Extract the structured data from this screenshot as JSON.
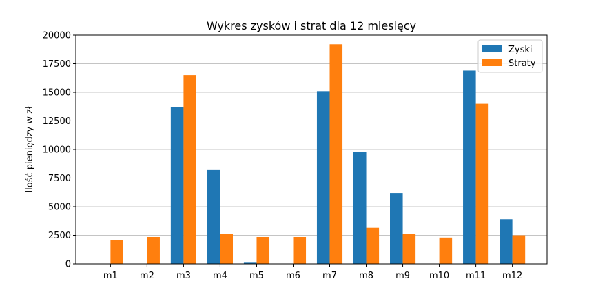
{
  "chart_data": {
    "type": "bar",
    "title": "Wykres zysków i strat dla 12 miesięcy",
    "xlabel": "",
    "ylabel": "Ilość pieniędzy w zł",
    "categories": [
      "m1",
      "m2",
      "m3",
      "m4",
      "m5",
      "m6",
      "m7",
      "m8",
      "m9",
      "m10",
      "m11",
      "m12"
    ],
    "series": [
      {
        "name": "Zyski",
        "color": "#1f77b4",
        "values": [
          0,
          0,
          13700,
          8200,
          100,
          0,
          15100,
          9800,
          6200,
          0,
          16900,
          3900
        ]
      },
      {
        "name": "Straty",
        "color": "#ff7f0e",
        "values": [
          2100,
          2350,
          16500,
          2650,
          2350,
          2350,
          19200,
          3150,
          2650,
          2300,
          14000,
          2500
        ]
      }
    ],
    "ylim": [
      0,
      20000
    ],
    "yticks": [
      0,
      2500,
      5000,
      7500,
      10000,
      12500,
      15000,
      17500,
      20000
    ],
    "grid": "y",
    "legend_position": "top-right"
  }
}
